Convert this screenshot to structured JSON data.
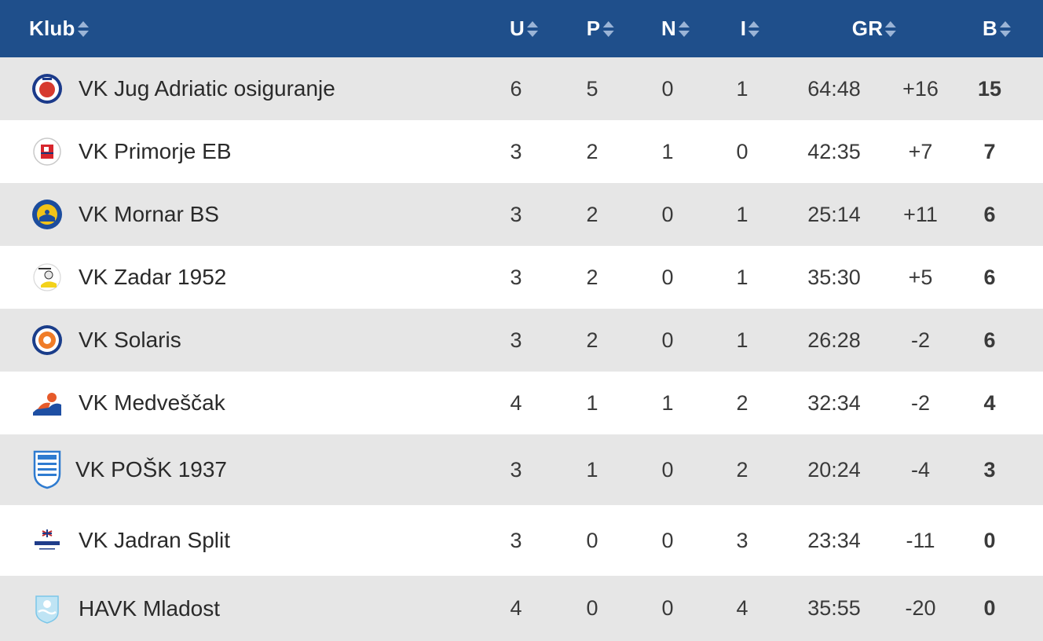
{
  "header": {
    "klub": "Klub",
    "u": "U",
    "p": "P",
    "n": "N",
    "i": "I",
    "gr": "GR",
    "b": "B"
  },
  "colors": {
    "header_bg": "#1f4f8b",
    "row_alt": "#e6e6e6"
  },
  "rows": [
    {
      "logo": "jug-logo-icon",
      "name": "VK Jug Adriatic osiguranje",
      "u": "6",
      "p": "5",
      "n": "0",
      "i": "1",
      "goals": "64:48",
      "diff": "+16",
      "points": "15"
    },
    {
      "logo": "primorje-logo-icon",
      "name": "VK Primorje EB",
      "u": "3",
      "p": "2",
      "n": "1",
      "i": "0",
      "goals": "42:35",
      "diff": "+7",
      "points": "7"
    },
    {
      "logo": "mornar-logo-icon",
      "name": "VK Mornar BS",
      "u": "3",
      "p": "2",
      "n": "0",
      "i": "1",
      "goals": "25:14",
      "diff": "+11",
      "points": "6"
    },
    {
      "logo": "zadar-logo-icon",
      "name": "VK Zadar 1952",
      "u": "3",
      "p": "2",
      "n": "0",
      "i": "1",
      "goals": "35:30",
      "diff": "+5",
      "points": "6"
    },
    {
      "logo": "solaris-logo-icon",
      "name": "VK Solaris",
      "u": "3",
      "p": "2",
      "n": "0",
      "i": "1",
      "goals": "26:28",
      "diff": "-2",
      "points": "6"
    },
    {
      "logo": "medvescak-logo-icon",
      "name": "VK Medveščak",
      "u": "4",
      "p": "1",
      "n": "1",
      "i": "2",
      "goals": "32:34",
      "diff": "-2",
      "points": "4"
    },
    {
      "logo": "posk-logo-icon",
      "name": "VK POŠK 1937",
      "u": "3",
      "p": "1",
      "n": "0",
      "i": "2",
      "goals": "20:24",
      "diff": "-4",
      "points": "3"
    },
    {
      "logo": "jadran-logo-icon",
      "name": "VK Jadran Split",
      "u": "3",
      "p": "0",
      "n": "0",
      "i": "3",
      "goals": "23:34",
      "diff": "-11",
      "points": "0"
    },
    {
      "logo": "mladost-logo-icon",
      "name": "HAVK Mladost",
      "u": "4",
      "p": "0",
      "n": "0",
      "i": "4",
      "goals": "35:55",
      "diff": "-20",
      "points": "0"
    }
  ]
}
